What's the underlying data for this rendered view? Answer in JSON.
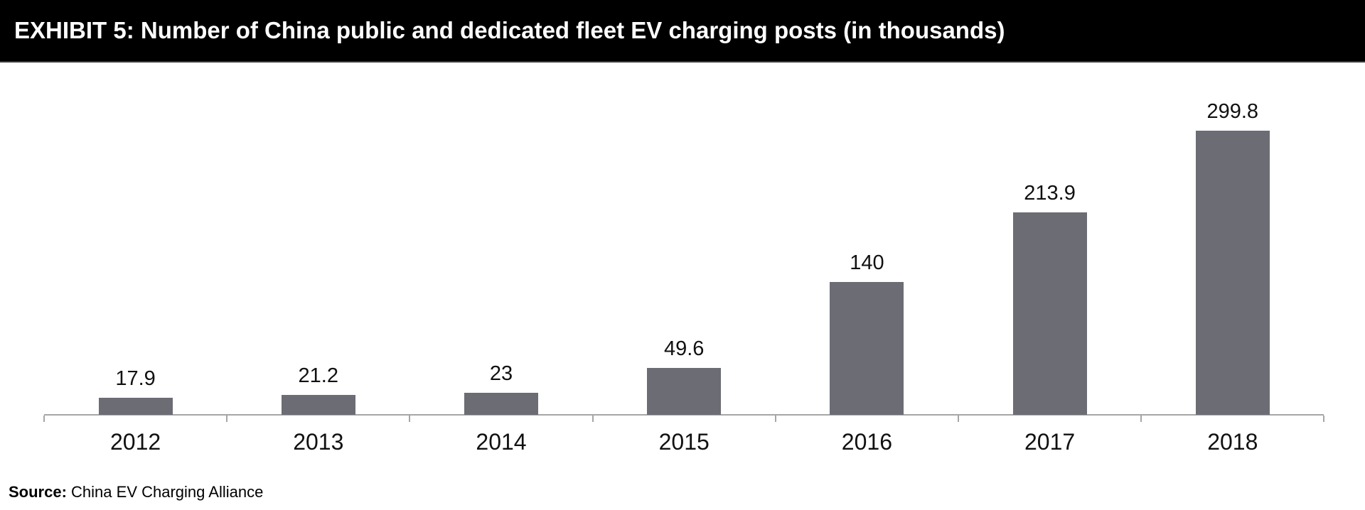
{
  "header": {
    "title": "EXHIBIT 5: Number of China public and dedicated fleet EV charging posts (in thousands)"
  },
  "chart_data": {
    "type": "bar",
    "title": "EXHIBIT 5: Number of China public and dedicated fleet EV charging posts (in thousands)",
    "categories": [
      "2012",
      "2013",
      "2014",
      "2015",
      "2016",
      "2017",
      "2018"
    ],
    "values": [
      17.9,
      21.2,
      23,
      49.6,
      140,
      213.9,
      299.8
    ],
    "value_labels": [
      "17.9",
      "21.2",
      "23",
      "49.6",
      "140",
      "213.9",
      "299.8"
    ],
    "xlabel": "",
    "ylabel": "",
    "ylim": [
      0,
      300
    ],
    "grid": false,
    "legend": false,
    "data_labels": "above-bars",
    "bar_color": "#6c6c74",
    "axis_color": "#a6a6a6",
    "label_color": "#111111",
    "header_bg_color": "#000000",
    "header_text_color": "#ffffff"
  },
  "footer": {
    "source_label": "Source:",
    "source_text": "China EV Charging Alliance"
  }
}
